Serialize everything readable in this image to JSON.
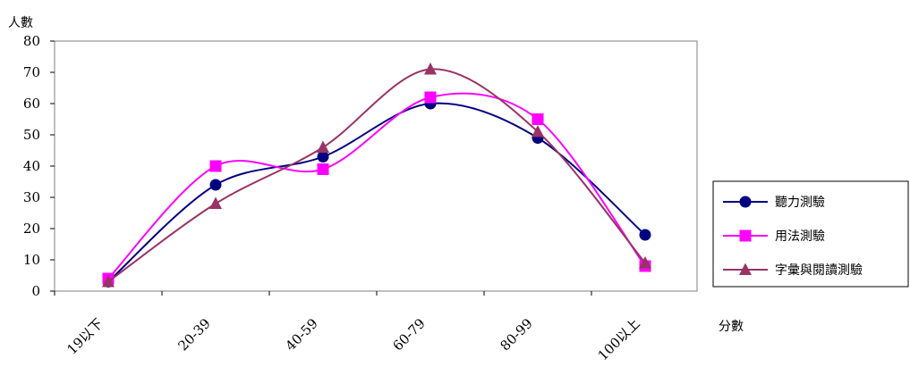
{
  "chart_data": {
    "type": "line",
    "title": "",
    "ylabel": "人數",
    "xlabel": "分數",
    "ylim": [
      0,
      80
    ],
    "yticks": [
      0,
      10,
      20,
      30,
      40,
      50,
      60,
      70,
      80
    ],
    "categories": [
      "19以下",
      "20-39",
      "40-59",
      "60-79",
      "80-99",
      "100以上"
    ],
    "grid": false,
    "legend_position": "right",
    "series": [
      {
        "name": "聽力測驗",
        "values": [
          3,
          34,
          43,
          60,
          49,
          18
        ],
        "color": "#000080",
        "marker": "circle"
      },
      {
        "name": "用法測驗",
        "values": [
          4,
          40,
          39,
          62,
          55,
          8
        ],
        "color": "#FF00FF",
        "marker": "square"
      },
      {
        "name": "字彙與閱讀測驗",
        "values": [
          3,
          28,
          46,
          71,
          51,
          9
        ],
        "color": "#993366",
        "marker": "triangle"
      }
    ]
  }
}
